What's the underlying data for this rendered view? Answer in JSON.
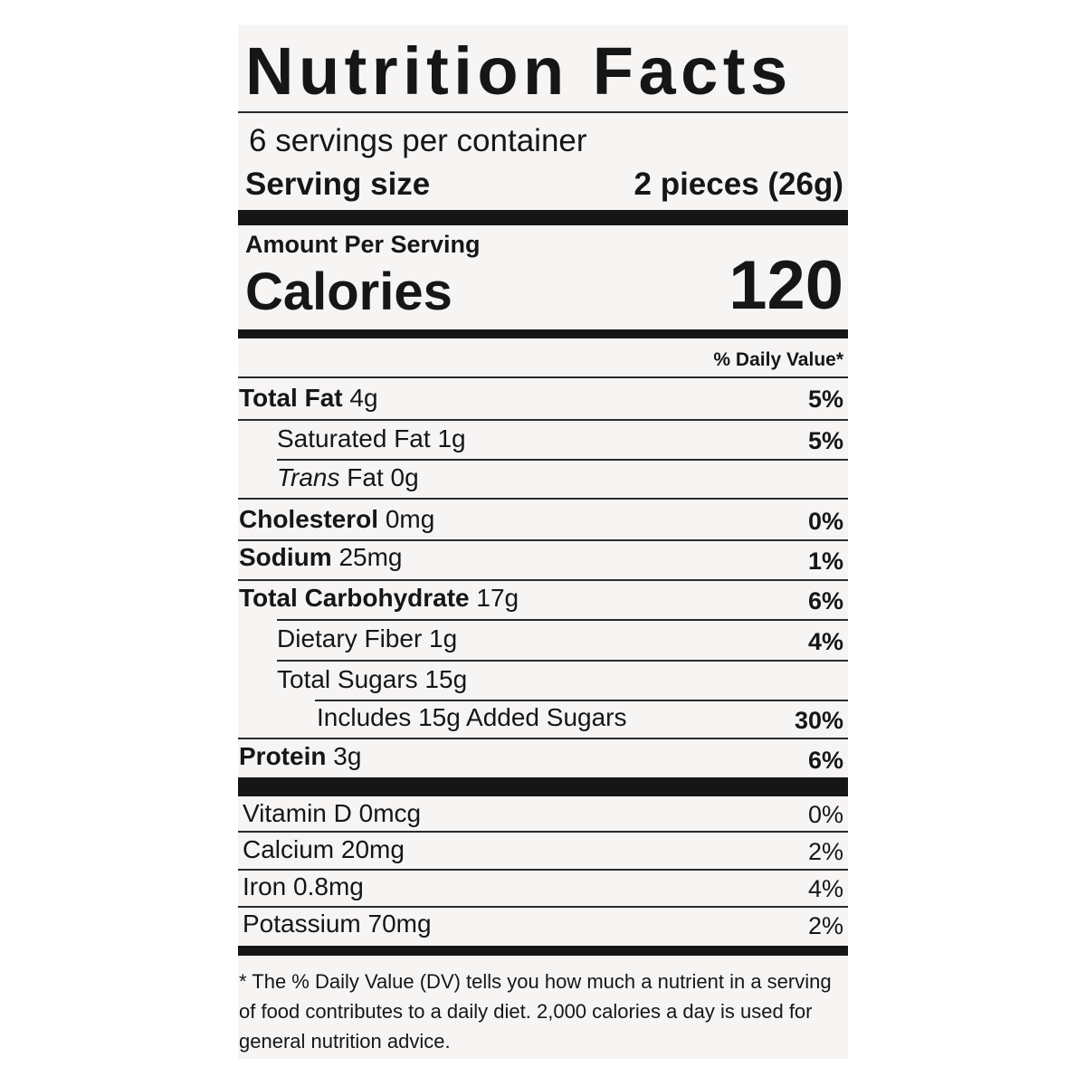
{
  "label": {
    "title": "Nutrition Facts",
    "servings_per_container": "6 servings per container",
    "serving_size_label": "Serving size",
    "serving_size_value": "2 pieces (26g)",
    "amount_per_serving": "Amount Per Serving",
    "calories_label": "Calories",
    "calories_value": "120",
    "daily_value_header": "% Daily Value*",
    "nutrients": [
      {
        "name": "Total Fat",
        "amount": "4g",
        "dv": "5%"
      },
      {
        "name": "Saturated Fat",
        "amount": "1g",
        "dv": "5%"
      },
      {
        "name": "Trans",
        "name_rest": "Fat 0g",
        "dv": ""
      },
      {
        "name": "Cholesterol",
        "amount": "0mg",
        "dv": "0%"
      },
      {
        "name": "Sodium",
        "amount": "25mg",
        "dv": "1%"
      },
      {
        "name": "Total Carbohydrate",
        "amount": "17g",
        "dv": "6%"
      },
      {
        "name": "Dietary Fiber",
        "amount": "1g",
        "dv": "4%"
      },
      {
        "name": "Total Sugars",
        "amount": "15g",
        "dv": ""
      },
      {
        "name": "Includes 15g Added Sugars",
        "dv": "30%"
      },
      {
        "name": "Protein",
        "amount": "3g",
        "dv": "6%"
      }
    ],
    "vitamins": [
      {
        "text": "Vitamin D 0mcg",
        "dv": "0%"
      },
      {
        "text": "Calcium 20mg",
        "dv": "2%"
      },
      {
        "text": "Iron 0.8mg",
        "dv": "4%"
      },
      {
        "text": "Potassium 70mg",
        "dv": "2%"
      }
    ],
    "footnote": "* The % Daily Value (DV) tells you how much a nutrient in a serving of food contributes to a daily diet. 2,000 calories a day is used for general nutrition advice."
  }
}
